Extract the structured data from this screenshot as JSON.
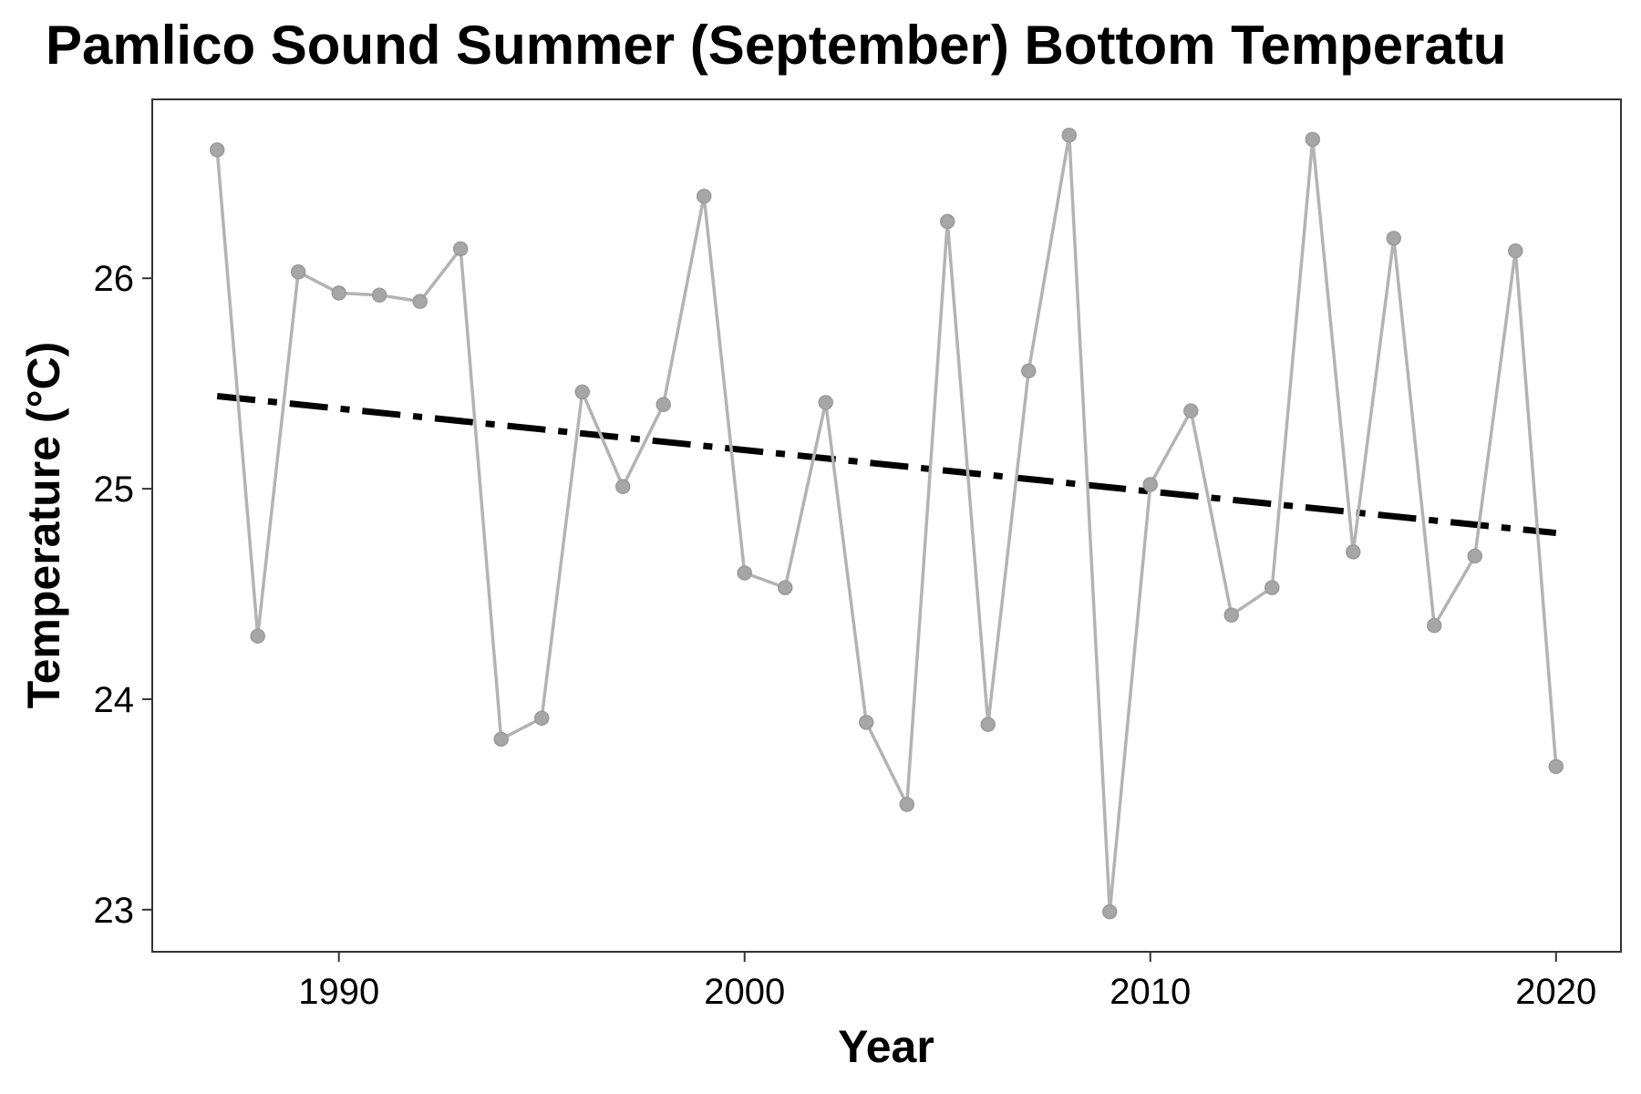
{
  "chart_data": {
    "type": "line",
    "title": "Pamlico Sound Summer (September) Bottom Temperatu",
    "xlabel": "Year",
    "ylabel": "Temperature (°C)",
    "xlim": [
      1985.4,
      2021.6
    ],
    "ylim": [
      22.8,
      26.85
    ],
    "x_ticks": [
      1990,
      2000,
      2010,
      2020
    ],
    "y_ticks": [
      23,
      24,
      25,
      26
    ],
    "grid": false,
    "legend": "none",
    "series": [
      {
        "x": [
          1987,
          1988,
          1989,
          1990,
          1991,
          1992,
          1993,
          1994,
          1995,
          1996,
          1997,
          1998,
          1999,
          2000,
          2001,
          2002,
          2003,
          2004,
          2005,
          2006,
          2007,
          2008,
          2009,
          2010,
          2011,
          2012,
          2013,
          2014,
          2015,
          2016,
          2017,
          2018,
          2019,
          2020
        ],
        "values": [
          26.61,
          24.3,
          26.03,
          25.93,
          25.92,
          25.89,
          26.14,
          23.81,
          23.91,
          25.46,
          25.01,
          25.4,
          26.39,
          24.6,
          24.53,
          25.41,
          23.89,
          23.5,
          26.27,
          23.88,
          25.56,
          26.68,
          22.99,
          25.02,
          25.37,
          24.4,
          24.53,
          26.66,
          24.7,
          26.19,
          24.35,
          24.68,
          26.13,
          23.68
        ],
        "color": "#b3b3b3"
      }
    ],
    "trend": {
      "style": "dash-dot",
      "color": "#000000",
      "x": [
        1987,
        2020
      ],
      "values": [
        25.44,
        24.79
      ]
    }
  }
}
